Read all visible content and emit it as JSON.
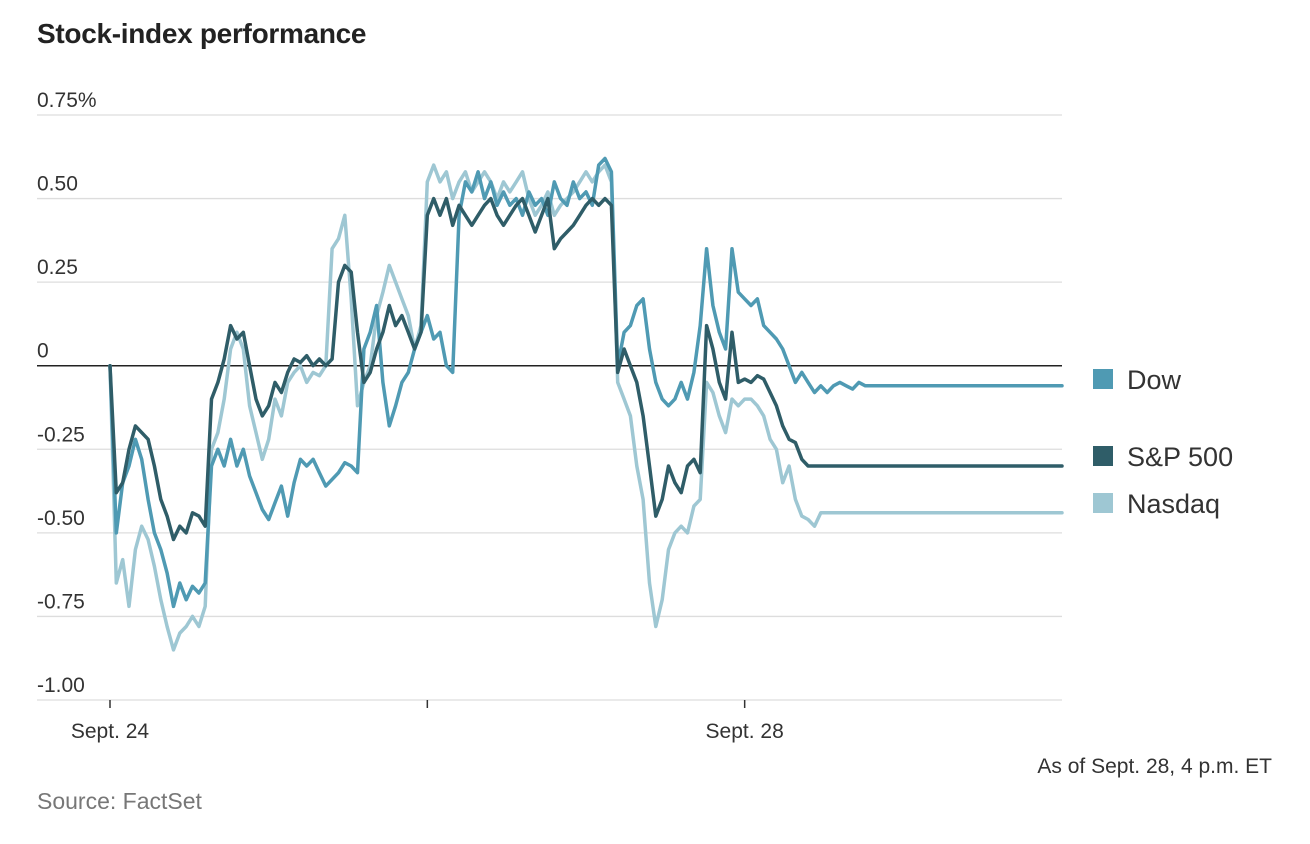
{
  "title": "Stock-index performance",
  "note": "As of Sept. 28, 4 p.m. ET",
  "source": "Source: FactSet",
  "chart_data": {
    "type": "line",
    "title": "Stock-index performance",
    "xlabel": "",
    "ylabel": "",
    "y_tick_labels": [
      "0.75%",
      "0.50",
      "0.25",
      "0",
      "-0.25",
      "-0.50",
      "-0.75",
      "-1.00"
    ],
    "y_tick_values": [
      0.75,
      0.5,
      0.25,
      0,
      -0.25,
      -0.5,
      -0.75,
      -1.0
    ],
    "ylim": [
      -1.0,
      0.75
    ],
    "x_tick_labels": [
      "Sept. 24",
      "",
      "Sept. 28"
    ],
    "x_tick_positions": [
      0,
      1,
      2
    ],
    "xlim": [
      0,
      3
    ],
    "grid": true,
    "legend_position": "right",
    "series": [
      {
        "name": "Dow",
        "color": "#4f9ab3",
        "x": [
          0,
          0.02,
          0.04,
          0.06,
          0.08,
          0.1,
          0.12,
          0.14,
          0.16,
          0.18,
          0.2,
          0.22,
          0.24,
          0.26,
          0.28,
          0.3,
          0.32,
          0.34,
          0.36,
          0.38,
          0.4,
          0.42,
          0.44,
          0.46,
          0.48,
          0.5,
          0.52,
          0.54,
          0.56,
          0.58,
          0.6,
          0.62,
          0.64,
          0.66,
          0.68,
          0.7,
          0.72,
          0.74,
          0.76,
          0.78,
          0.8,
          0.82,
          0.84,
          0.86,
          0.88,
          0.9,
          0.92,
          0.94,
          0.96,
          0.98,
          1,
          1.02,
          1.04,
          1.06,
          1.08,
          1.1,
          1.12,
          1.14,
          1.16,
          1.18,
          1.2,
          1.22,
          1.24,
          1.26,
          1.28,
          1.3,
          1.32,
          1.34,
          1.36,
          1.38,
          1.4,
          1.42,
          1.44,
          1.46,
          1.48,
          1.5,
          1.52,
          1.54,
          1.56,
          1.58,
          1.6,
          1.62,
          1.64,
          1.66,
          1.68,
          1.7,
          1.72,
          1.74,
          1.76,
          1.78,
          1.8,
          1.82,
          1.84,
          1.86,
          1.88,
          1.9,
          1.92,
          1.94,
          1.96,
          1.98,
          2,
          2.02,
          2.04,
          2.06,
          2.08,
          2.1,
          2.12,
          2.14,
          2.16,
          2.18,
          2.2,
          2.22,
          2.24,
          2.26,
          2.28,
          2.3,
          2.32,
          2.34,
          2.36,
          2.38,
          2.4,
          2.42,
          2.44,
          2.46,
          2.48,
          2.5,
          2.52,
          2.54,
          2.56,
          2.58,
          2.6,
          2.62,
          2.64,
          2.66,
          2.68,
          2.7,
          2.72,
          2.74,
          2.76,
          2.78,
          2.8,
          2.82,
          2.84,
          2.86,
          2.88,
          2.9,
          2.92,
          2.94,
          2.96,
          2.98,
          3
        ],
        "values": [
          0,
          -0.5,
          -0.35,
          -0.3,
          -0.22,
          -0.28,
          -0.4,
          -0.5,
          -0.55,
          -0.62,
          -0.72,
          -0.65,
          -0.7,
          -0.66,
          -0.68,
          -0.65,
          -0.3,
          -0.25,
          -0.3,
          -0.22,
          -0.3,
          -0.25,
          -0.33,
          -0.38,
          -0.43,
          -0.46,
          -0.41,
          -0.36,
          -0.45,
          -0.35,
          -0.28,
          -0.3,
          -0.28,
          -0.32,
          -0.36,
          -0.34,
          -0.32,
          -0.29,
          -0.3,
          -0.32,
          0.05,
          0.1,
          0.18,
          -0.05,
          -0.18,
          -0.12,
          -0.05,
          -0.02,
          0.05,
          0.1,
          0.15,
          0.08,
          0.1,
          0,
          -0.02,
          0.45,
          0.55,
          0.52,
          0.58,
          0.5,
          0.55,
          0.48,
          0.52,
          0.48,
          0.5,
          0.45,
          0.52,
          0.48,
          0.5,
          0.45,
          0.55,
          0.5,
          0.48,
          0.55,
          0.5,
          0.52,
          0.48,
          0.6,
          0.62,
          0.58,
          0,
          0.1,
          0.12,
          0.18,
          0.2,
          0.05,
          -0.05,
          -0.1,
          -0.12,
          -0.1,
          -0.05,
          -0.1,
          -0.02,
          0.12,
          0.35,
          0.18,
          0.1,
          0.05,
          0.35,
          0.22,
          0.2,
          0.18,
          0.2,
          0.12,
          0.1,
          0.08,
          0.05,
          0.0,
          -0.05,
          -0.02,
          -0.05,
          -0.08,
          -0.06,
          -0.08,
          -0.06,
          -0.05,
          -0.06,
          -0.07,
          -0.05,
          -0.06,
          -0.06,
          -0.06,
          -0.06,
          -0.06,
          -0.06,
          -0.06,
          -0.06,
          -0.06,
          -0.06,
          -0.06,
          -0.06,
          -0.06,
          -0.06,
          -0.06,
          -0.06,
          -0.06,
          -0.06,
          -0.06,
          -0.06,
          -0.06,
          -0.06,
          -0.06,
          -0.06,
          -0.06,
          -0.06,
          -0.06,
          -0.06,
          -0.06,
          -0.06,
          -0.06,
          -0.06
        ]
      },
      {
        "name": "S&P 500",
        "color": "#2f5d68",
        "x": [
          0,
          0.02,
          0.04,
          0.06,
          0.08,
          0.1,
          0.12,
          0.14,
          0.16,
          0.18,
          0.2,
          0.22,
          0.24,
          0.26,
          0.28,
          0.3,
          0.32,
          0.34,
          0.36,
          0.38,
          0.4,
          0.42,
          0.44,
          0.46,
          0.48,
          0.5,
          0.52,
          0.54,
          0.56,
          0.58,
          0.6,
          0.62,
          0.64,
          0.66,
          0.68,
          0.7,
          0.72,
          0.74,
          0.76,
          0.78,
          0.8,
          0.82,
          0.84,
          0.86,
          0.88,
          0.9,
          0.92,
          0.94,
          0.96,
          0.98,
          1,
          1.02,
          1.04,
          1.06,
          1.08,
          1.1,
          1.12,
          1.14,
          1.16,
          1.18,
          1.2,
          1.22,
          1.24,
          1.26,
          1.28,
          1.3,
          1.32,
          1.34,
          1.36,
          1.38,
          1.4,
          1.42,
          1.44,
          1.46,
          1.48,
          1.5,
          1.52,
          1.54,
          1.56,
          1.58,
          1.6,
          1.62,
          1.64,
          1.66,
          1.68,
          1.7,
          1.72,
          1.74,
          1.76,
          1.78,
          1.8,
          1.82,
          1.84,
          1.86,
          1.88,
          1.9,
          1.92,
          1.94,
          1.96,
          1.98,
          2,
          2.02,
          2.04,
          2.06,
          2.08,
          2.1,
          2.12,
          2.14,
          2.16,
          2.18,
          2.2,
          2.22,
          2.24,
          2.26,
          2.28,
          2.3,
          2.32,
          2.34,
          2.36,
          2.38,
          2.4,
          2.42,
          2.44,
          2.46,
          2.48,
          2.5,
          2.52,
          2.54,
          2.56,
          2.58,
          2.6,
          2.62,
          2.64,
          2.66,
          2.68,
          2.7,
          2.72,
          2.74,
          2.76,
          2.78,
          2.8,
          2.82,
          2.84,
          2.86,
          2.88,
          2.9,
          2.92,
          2.94,
          2.96,
          2.98,
          3
        ],
        "values": [
          0,
          -0.38,
          -0.35,
          -0.25,
          -0.18,
          -0.2,
          -0.22,
          -0.3,
          -0.4,
          -0.45,
          -0.52,
          -0.48,
          -0.5,
          -0.44,
          -0.45,
          -0.48,
          -0.1,
          -0.05,
          0.02,
          0.12,
          0.08,
          0.1,
          0.0,
          -0.1,
          -0.15,
          -0.12,
          -0.05,
          -0.08,
          -0.02,
          0.02,
          0.01,
          0.03,
          0.0,
          0.02,
          0.0,
          0.02,
          0.25,
          0.3,
          0.28,
          0.1,
          -0.05,
          -0.02,
          0.05,
          0.1,
          0.18,
          0.12,
          0.15,
          0.1,
          0.05,
          0.1,
          0.45,
          0.5,
          0.45,
          0.5,
          0.42,
          0.48,
          0.45,
          0.42,
          0.45,
          0.48,
          0.5,
          0.45,
          0.42,
          0.45,
          0.48,
          0.5,
          0.45,
          0.4,
          0.45,
          0.5,
          0.35,
          0.38,
          0.4,
          0.42,
          0.45,
          0.48,
          0.5,
          0.48,
          0.5,
          0.48,
          -0.02,
          0.05,
          0.0,
          -0.05,
          -0.15,
          -0.3,
          -0.45,
          -0.4,
          -0.3,
          -0.35,
          -0.38,
          -0.3,
          -0.28,
          -0.32,
          0.12,
          0.05,
          -0.05,
          -0.1,
          0.1,
          -0.05,
          -0.04,
          -0.05,
          -0.03,
          -0.04,
          -0.08,
          -0.12,
          -0.18,
          -0.22,
          -0.23,
          -0.28,
          -0.3,
          -0.3,
          -0.3,
          -0.3,
          -0.3,
          -0.3,
          -0.3,
          -0.3,
          -0.3,
          -0.3,
          -0.3,
          -0.3,
          -0.3,
          -0.3,
          -0.3,
          -0.3,
          -0.3,
          -0.3,
          -0.3,
          -0.3,
          -0.3,
          -0.3,
          -0.3,
          -0.3,
          -0.3,
          -0.3,
          -0.3,
          -0.3,
          -0.3,
          -0.3,
          -0.3,
          -0.3,
          -0.3,
          -0.3,
          -0.3,
          -0.3,
          -0.3,
          -0.3,
          -0.3,
          -0.3,
          -0.3
        ]
      },
      {
        "name": "Nasdaq",
        "color": "#9ec7d3",
        "x": [
          0,
          0.02,
          0.04,
          0.06,
          0.08,
          0.1,
          0.12,
          0.14,
          0.16,
          0.18,
          0.2,
          0.22,
          0.24,
          0.26,
          0.28,
          0.3,
          0.32,
          0.34,
          0.36,
          0.38,
          0.4,
          0.42,
          0.44,
          0.46,
          0.48,
          0.5,
          0.52,
          0.54,
          0.56,
          0.58,
          0.6,
          0.62,
          0.64,
          0.66,
          0.68,
          0.7,
          0.72,
          0.74,
          0.76,
          0.78,
          0.8,
          0.82,
          0.84,
          0.86,
          0.88,
          0.9,
          0.92,
          0.94,
          0.96,
          0.98,
          1,
          1.02,
          1.04,
          1.06,
          1.08,
          1.1,
          1.12,
          1.14,
          1.16,
          1.18,
          1.2,
          1.22,
          1.24,
          1.26,
          1.28,
          1.3,
          1.32,
          1.34,
          1.36,
          1.38,
          1.4,
          1.42,
          1.44,
          1.46,
          1.48,
          1.5,
          1.52,
          1.54,
          1.56,
          1.58,
          1.6,
          1.62,
          1.64,
          1.66,
          1.68,
          1.7,
          1.72,
          1.74,
          1.76,
          1.78,
          1.8,
          1.82,
          1.84,
          1.86,
          1.88,
          1.9,
          1.92,
          1.94,
          1.96,
          1.98,
          2,
          2.02,
          2.04,
          2.06,
          2.08,
          2.1,
          2.12,
          2.14,
          2.16,
          2.18,
          2.2,
          2.22,
          2.24,
          2.26,
          2.28,
          2.3,
          2.32,
          2.34,
          2.36,
          2.38,
          2.4,
          2.42,
          2.44,
          2.46,
          2.48,
          2.5,
          2.52,
          2.54,
          2.56,
          2.58,
          2.6,
          2.62,
          2.64,
          2.66,
          2.68,
          2.7,
          2.72,
          2.74,
          2.76,
          2.78,
          2.8,
          2.82,
          2.84,
          2.86,
          2.88,
          2.9,
          2.92,
          2.94,
          2.96,
          2.98,
          3
        ],
        "values": [
          0,
          -0.65,
          -0.58,
          -0.72,
          -0.55,
          -0.48,
          -0.52,
          -0.6,
          -0.7,
          -0.78,
          -0.85,
          -0.8,
          -0.78,
          -0.75,
          -0.78,
          -0.72,
          -0.25,
          -0.2,
          -0.1,
          0.05,
          0.1,
          0.05,
          -0.12,
          -0.2,
          -0.28,
          -0.22,
          -0.1,
          -0.15,
          -0.05,
          -0.02,
          0.0,
          -0.05,
          -0.02,
          -0.03,
          0.0,
          0.35,
          0.38,
          0.45,
          0.2,
          -0.12,
          -0.05,
          0.0,
          0.15,
          0.22,
          0.3,
          0.25,
          0.2,
          0.15,
          0.05,
          0.12,
          0.55,
          0.6,
          0.55,
          0.58,
          0.5,
          0.55,
          0.58,
          0.52,
          0.55,
          0.58,
          0.55,
          0.5,
          0.55,
          0.52,
          0.55,
          0.58,
          0.5,
          0.45,
          0.48,
          0.52,
          0.45,
          0.48,
          0.5,
          0.52,
          0.55,
          0.58,
          0.55,
          0.58,
          0.6,
          0.55,
          -0.05,
          -0.1,
          -0.15,
          -0.3,
          -0.4,
          -0.65,
          -0.78,
          -0.7,
          -0.55,
          -0.5,
          -0.48,
          -0.5,
          -0.42,
          -0.4,
          -0.05,
          -0.08,
          -0.15,
          -0.2,
          -0.1,
          -0.12,
          -0.1,
          -0.1,
          -0.12,
          -0.15,
          -0.22,
          -0.25,
          -0.35,
          -0.3,
          -0.4,
          -0.45,
          -0.46,
          -0.48,
          -0.44,
          -0.44,
          -0.44,
          -0.44,
          -0.44,
          -0.44,
          -0.44,
          -0.44,
          -0.44,
          -0.44,
          -0.44,
          -0.44,
          -0.44,
          -0.44,
          -0.44,
          -0.44,
          -0.44,
          -0.44,
          -0.44,
          -0.44,
          -0.44,
          -0.44,
          -0.44,
          -0.44,
          -0.44,
          -0.44,
          -0.44,
          -0.44,
          -0.44,
          -0.44,
          -0.44,
          -0.44,
          -0.44,
          -0.44,
          -0.44,
          -0.44,
          -0.44,
          -0.44,
          -0.44
        ]
      }
    ],
    "legend": [
      "Dow",
      "S&P 500",
      "Nasdaq"
    ]
  }
}
